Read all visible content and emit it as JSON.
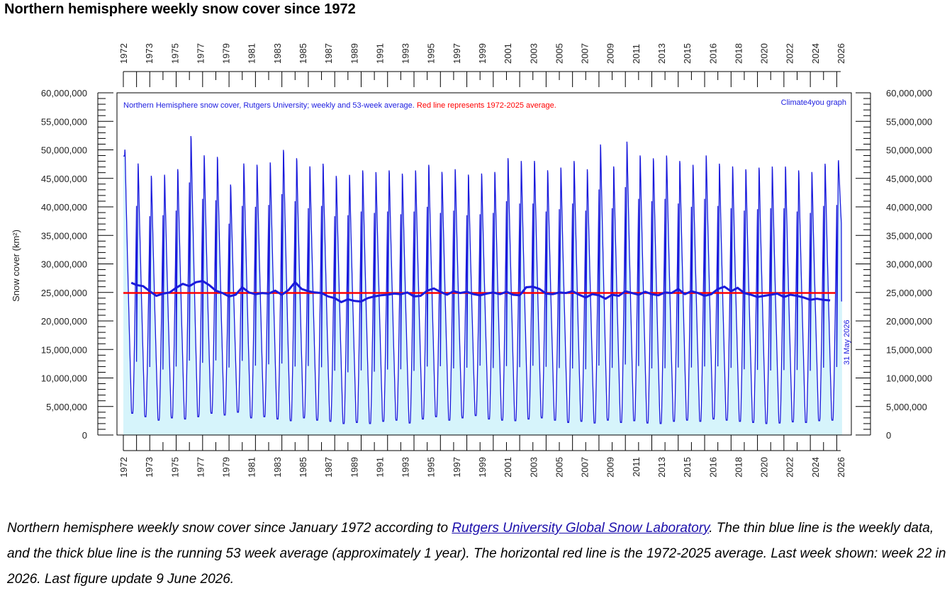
{
  "page": {
    "title": "Northern hemisphere weekly snow cover since 1972",
    "caption_part1": "Northern hemisphere weekly snow cover since January 1972 according to ",
    "caption_link": "Rutgers University Global Snow Laboratory",
    "caption_part2": ". The thin blue line is the weekly data, and the thick blue line is the running 53 week average (approximately 1 year). The horizontal red line is the 1972-2025 average. Last week shown: week 22 in 2026. Last figure update 9 June 2026."
  },
  "chart_data": {
    "type": "line",
    "ylabel": "Snow cover (km²)",
    "annotation_series": "Northern Hemisphere snow cover, Rutgers University; weekly and 53-week average.",
    "annotation_red": "Red line represents 1972-2025 average.",
    "credit": "Climate4you graph",
    "date_label": "31 May 2026",
    "ylim": [
      0,
      60000000
    ],
    "xlim": [
      1972.0,
      2026.3
    ],
    "y_ticks": [
      "0",
      "5,000,000",
      "10,000,000",
      "15,000,000",
      "20,000,000",
      "25,000,000",
      "30,000,000",
      "35,000,000",
      "40,000,000",
      "45,000,000",
      "50,000,000",
      "55,000,000",
      "60,000,000"
    ],
    "x_tick_labels": [
      "1972",
      "1973",
      "1975",
      "1977",
      "1979",
      "1981",
      "1983",
      "1985",
      "1987",
      "1989",
      "1991",
      "1993",
      "1995",
      "1997",
      "1999",
      "2001",
      "2003",
      "2005",
      "2007",
      "2009",
      "2011",
      "2013",
      "2015",
      "2016",
      "2018",
      "2020",
      "2022",
      "2024",
      "2026"
    ],
    "average_1972_2025": 24900000,
    "colors": {
      "weekly": "#1a1adc",
      "fill": "#d6f4fb",
      "average": "#ff0000",
      "annotation_blue": "#2020e0",
      "annotation_red": "#ff0000"
    },
    "weekly_series": {
      "name": "weekly",
      "years": [
        1972,
        1973,
        1974,
        1975,
        1976,
        1977,
        1978,
        1979,
        1980,
        1981,
        1982,
        1983,
        1984,
        1985,
        1986,
        1987,
        1988,
        1989,
        1990,
        1991,
        1992,
        1993,
        1994,
        1995,
        1996,
        1997,
        1998,
        1999,
        2000,
        2001,
        2002,
        2003,
        2004,
        2005,
        2006,
        2007,
        2008,
        2009,
        2010,
        2011,
        2012,
        2013,
        2014,
        2015,
        2016,
        2017,
        2018,
        2019,
        2020,
        2021,
        2022,
        2023,
        2024,
        2025,
        2026
      ],
      "winter_max": [
        51500000,
        49000000,
        46800000,
        47000000,
        48000000,
        54000000,
        50500000,
        50200000,
        45200000,
        49000000,
        48800000,
        49200000,
        51500000,
        50000000,
        48500000,
        49000000,
        46800000,
        47000000,
        47800000,
        47500000,
        47800000,
        47200000,
        47800000,
        48800000,
        47500000,
        48000000,
        47000000,
        47200000,
        47500000,
        50000000,
        49500000,
        49500000,
        47800000,
        48300000,
        49500000,
        48000000,
        52500000,
        48500000,
        53000000,
        50500000,
        50000000,
        50500000,
        49500000,
        48800000,
        50500000,
        49000000,
        48500000,
        48000000,
        48300000,
        48500000,
        48500000,
        47800000,
        47500000,
        49000000,
        49200000
      ],
      "summer_min": [
        3800000,
        3200000,
        2600000,
        3000000,
        2800000,
        3200000,
        3800000,
        3500000,
        4000000,
        3000000,
        3200000,
        2800000,
        2500000,
        3000000,
        2600000,
        2400000,
        2000000,
        2200000,
        2000000,
        2400000,
        2600000,
        2100000,
        2800000,
        3200000,
        2600000,
        3000000,
        3400000,
        2800000,
        2600000,
        2500000,
        2800000,
        3000000,
        2600000,
        2200000,
        2400000,
        2100000,
        2600000,
        2200000,
        2500000,
        2100000,
        2000000,
        2400000,
        2600000,
        2400000,
        2800000,
        2600000,
        2400000,
        2200000,
        2000000,
        2100000,
        2300000,
        2200000,
        2500000,
        2600000,
        null
      ],
      "last_value": 23500000
    },
    "running_average_series": {
      "name": "53-week average",
      "x": [
        1972.6,
        1973.0,
        1973.5,
        1974.0,
        1974.5,
        1975.0,
        1975.5,
        1976.0,
        1976.5,
        1977.0,
        1977.5,
        1978.0,
        1978.5,
        1979.0,
        1979.5,
        1980.0,
        1980.5,
        1981.0,
        1981.5,
        1982.0,
        1982.5,
        1983.0,
        1983.5,
        1984.0,
        1984.5,
        1985.0,
        1985.5,
        1986.0,
        1986.5,
        1987.0,
        1987.5,
        1988.0,
        1988.5,
        1989.0,
        1989.5,
        1990.0,
        1990.5,
        1991.0,
        1991.5,
        1992.0,
        1992.5,
        1993.0,
        1993.5,
        1994.0,
        1994.5,
        1995.0,
        1995.5,
        1996.0,
        1996.5,
        1997.0,
        1997.5,
        1998.0,
        1998.5,
        1999.0,
        1999.5,
        2000.0,
        2000.5,
        2001.0,
        2001.5,
        2002.0,
        2002.5,
        2003.0,
        2003.5,
        2004.0,
        2004.5,
        2005.0,
        2005.5,
        2006.0,
        2006.5,
        2007.0,
        2007.5,
        2008.0,
        2008.5,
        2009.0,
        2009.5,
        2010.0,
        2010.5,
        2011.0,
        2011.5,
        2012.0,
        2012.5,
        2013.0,
        2013.5,
        2014.0,
        2014.5,
        2015.0,
        2015.5,
        2016.0,
        2016.5,
        2017.0,
        2017.5,
        2018.0,
        2018.5,
        2019.0,
        2019.5,
        2020.0,
        2020.5,
        2021.0,
        2021.5,
        2022.0,
        2022.5,
        2023.0,
        2023.5,
        2024.0,
        2024.5,
        2025.0,
        2025.5
      ],
      "y": [
        26700000,
        26300000,
        26100000,
        25200000,
        24400000,
        24800000,
        25000000,
        25800000,
        26500000,
        26100000,
        26800000,
        27000000,
        26300000,
        25300000,
        24900000,
        24300000,
        24600000,
        25900000,
        25000000,
        24700000,
        24900000,
        24800000,
        25300000,
        24600000,
        25400000,
        26800000,
        25600000,
        25200000,
        25000000,
        24900000,
        24300000,
        24000000,
        23300000,
        23800000,
        23500000,
        23400000,
        24000000,
        24300000,
        24500000,
        24600000,
        24800000,
        24700000,
        25000000,
        24300000,
        24400000,
        25300000,
        25700000,
        25100000,
        24600000,
        25200000,
        24900000,
        25100000,
        24700000,
        24500000,
        24800000,
        25000000,
        24700000,
        25100000,
        24600000,
        24500000,
        25900000,
        26000000,
        25600000,
        24800000,
        24700000,
        25000000,
        24900000,
        25200000,
        24600000,
        24100000,
        24700000,
        24500000,
        23900000,
        24600000,
        24400000,
        25200000,
        24900000,
        24600000,
        25100000,
        24700000,
        24500000,
        25000000,
        24900000,
        25600000,
        24700000,
        25200000,
        24900000,
        24400000,
        24700000,
        25600000,
        26000000,
        25200000,
        25800000,
        24900000,
        24600000,
        24200000,
        24400000,
        24600000,
        24800000,
        24200000,
        24600000,
        24400000,
        24100000,
        23700000,
        23900000,
        23700000,
        23600000
      ]
    }
  }
}
